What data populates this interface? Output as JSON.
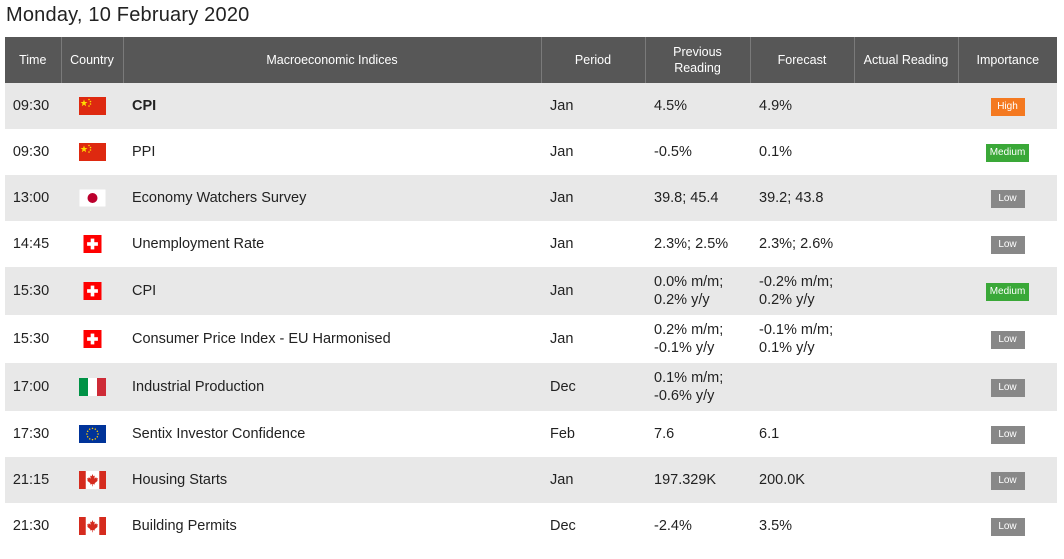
{
  "page_title": "Monday, 10 February 2020",
  "headers": {
    "time": "Time",
    "country": "Country",
    "indices": "Macroeconomic Indices",
    "period": "Period",
    "previous_line1": "Previous",
    "previous_line2": "Reading",
    "forecast": "Forecast",
    "actual": "Actual Reading",
    "importance": "Importance"
  },
  "colors": {
    "header_bg": "#575757",
    "row_alt_bg": "#e8e8e8",
    "high": "#f47920",
    "medium": "#3aa838",
    "low": "#888888"
  },
  "rows": [
    {
      "time": "09:30",
      "flag": "china-flag-icon",
      "indicator": "CPI",
      "period": "Jan",
      "previous": [
        "4.5%"
      ],
      "forecast": [
        "4.9%"
      ],
      "actual": "",
      "importance": "High"
    },
    {
      "time": "09:30",
      "flag": "china-flag-icon",
      "indicator": "PPI",
      "period": "Jan",
      "previous": [
        "-0.5%"
      ],
      "forecast": [
        "0.1%"
      ],
      "actual": "",
      "importance": "Medium"
    },
    {
      "time": "13:00",
      "flag": "japan-flag-icon",
      "indicator": "Economy Watchers Survey",
      "period": "Jan",
      "previous": [
        "39.8; 45.4"
      ],
      "forecast": [
        "39.2; 43.8"
      ],
      "actual": "",
      "importance": "Low"
    },
    {
      "time": "14:45",
      "flag": "switzerland-flag-icon",
      "indicator": "Unemployment Rate",
      "period": "Jan",
      "previous": [
        "2.3%; 2.5%"
      ],
      "forecast": [
        "2.3%; 2.6%"
      ],
      "actual": "",
      "importance": "Low"
    },
    {
      "time": "15:30",
      "flag": "switzerland-flag-icon",
      "indicator": "CPI",
      "period": "Jan",
      "previous": [
        "0.0% m/m;",
        "0.2% y/y"
      ],
      "forecast": [
        "-0.2% m/m;",
        "0.2% y/y"
      ],
      "actual": "",
      "importance": "Medium"
    },
    {
      "time": "15:30",
      "flag": "switzerland-flag-icon",
      "indicator": "Consumer Price Index - EU Harmonised",
      "period": "Jan",
      "previous": [
        "0.2% m/m;",
        "-0.1% y/y"
      ],
      "forecast": [
        "-0.1% m/m;",
        "0.1% y/y"
      ],
      "actual": "",
      "importance": "Low"
    },
    {
      "time": "17:00",
      "flag": "italy-flag-icon",
      "indicator": "Industrial Production",
      "period": "Dec",
      "previous": [
        "0.1% m/m;",
        "-0.6% y/y"
      ],
      "forecast": [
        ""
      ],
      "actual": "",
      "importance": "Low"
    },
    {
      "time": "17:30",
      "flag": "eu-flag-icon",
      "indicator": "Sentix Investor Confidence",
      "period": "Feb",
      "previous": [
        "7.6"
      ],
      "forecast": [
        "6.1"
      ],
      "actual": "",
      "importance": "Low"
    },
    {
      "time": "21:15",
      "flag": "canada-flag-icon",
      "indicator": "Housing Starts",
      "period": "Jan",
      "previous": [
        "197.329K"
      ],
      "forecast": [
        "200.0K"
      ],
      "actual": "",
      "importance": "Low"
    },
    {
      "time": "21:30",
      "flag": "canada-flag-icon",
      "indicator": "Building Permits",
      "period": "Dec",
      "previous": [
        "-2.4%"
      ],
      "forecast": [
        "3.5%"
      ],
      "actual": "",
      "importance": "Low"
    }
  ]
}
